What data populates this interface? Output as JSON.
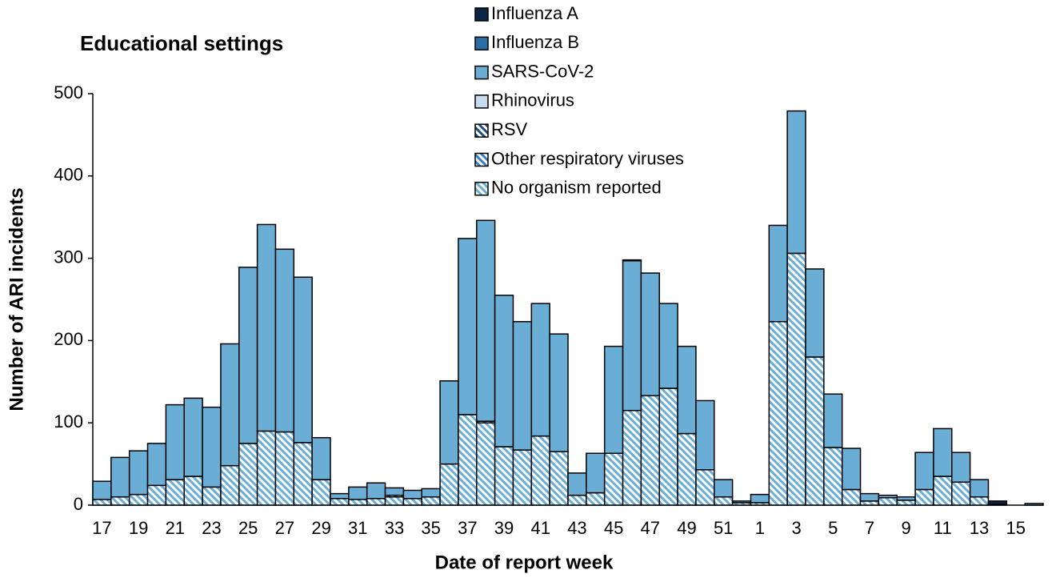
{
  "chart_data": {
    "type": "stacked_bar",
    "title": "Educational settings",
    "x_label": "Date of report week",
    "y_label": "Number of ARI incidents",
    "categories": [
      "17",
      null,
      "19",
      null,
      "21",
      null,
      "23",
      null,
      "25",
      null,
      "27",
      null,
      "29",
      null,
      "31",
      null,
      "33",
      null,
      "35",
      null,
      "37",
      null,
      "39",
      null,
      "41",
      null,
      "43",
      null,
      "45",
      null,
      "47",
      null,
      "49",
      null,
      "51",
      null,
      "1",
      null,
      "3",
      null,
      "5",
      null,
      "7",
      null,
      "9",
      null,
      "11",
      null,
      "13",
      null,
      "15",
      null
    ],
    "series": [
      {
        "name": "Influenza A",
        "color": "#0b2545",
        "pattern": "solid",
        "values": [
          0,
          0,
          0,
          0,
          0,
          0,
          0,
          0,
          0,
          0,
          0,
          0,
          0,
          0,
          0,
          0,
          0,
          0,
          0,
          0,
          0,
          0,
          0,
          0,
          0,
          0,
          0,
          0,
          0,
          1,
          0,
          0,
          0,
          0,
          0,
          0,
          0,
          0,
          0,
          0,
          0,
          0,
          0,
          0,
          0,
          0,
          0,
          0,
          0,
          4,
          0,
          0
        ]
      },
      {
        "name": "Influenza B",
        "color": "#2b6ea6",
        "pattern": "solid",
        "values": [
          0,
          0,
          0,
          0,
          0,
          0,
          0,
          0,
          0,
          0,
          0,
          0,
          0,
          0,
          0,
          0,
          0,
          0,
          0,
          0,
          0,
          0,
          0,
          0,
          0,
          0,
          0,
          0,
          0,
          0,
          0,
          0,
          0,
          0,
          0,
          0,
          0,
          0,
          0,
          0,
          0,
          0,
          0,
          0,
          0,
          0,
          0,
          0,
          0,
          0,
          0,
          0
        ]
      },
      {
        "name": "SARS-CoV-2",
        "color": "#6aaed6",
        "pattern": "solid",
        "values": [
          22,
          48,
          53,
          51,
          91,
          95,
          97,
          148,
          214,
          251,
          222,
          201,
          51,
          6,
          15,
          19,
          9,
          10,
          10,
          101,
          214,
          244,
          184,
          156,
          161,
          143,
          27,
          48,
          130,
          182,
          149,
          103,
          106,
          84,
          21,
          2,
          10,
          117,
          173,
          107,
          65,
          50,
          9,
          3,
          4,
          45,
          58,
          36,
          21,
          1,
          0,
          2
        ]
      },
      {
        "name": "Rhinovirus",
        "color": "#c6dbef",
        "pattern": "solid",
        "values": [
          0,
          0,
          0,
          0,
          0,
          0,
          0,
          0,
          0,
          0,
          0,
          0,
          0,
          0,
          0,
          0,
          0,
          0,
          0,
          0,
          0,
          0,
          0,
          0,
          0,
          0,
          0,
          0,
          0,
          0,
          0,
          0,
          0,
          0,
          0,
          0,
          0,
          0,
          0,
          0,
          0,
          0,
          0,
          0,
          0,
          0,
          0,
          0,
          0,
          0,
          0,
          0
        ]
      },
      {
        "name": "RSV",
        "color": "#1f4e79",
        "pattern": "hatch",
        "values": [
          0,
          0,
          0,
          0,
          0,
          0,
          0,
          0,
          0,
          0,
          0,
          0,
          0,
          0,
          0,
          0,
          0,
          0,
          0,
          0,
          0,
          0,
          0,
          0,
          0,
          0,
          0,
          0,
          0,
          0,
          0,
          0,
          0,
          0,
          0,
          0,
          0,
          0,
          0,
          0,
          0,
          0,
          0,
          0,
          0,
          0,
          0,
          0,
          0,
          0,
          0,
          0
        ]
      },
      {
        "name": "Other respiratory viruses",
        "color": "#3a7fc0",
        "pattern": "hatch",
        "values": [
          0,
          0,
          0,
          0,
          0,
          0,
          0,
          0,
          0,
          0,
          0,
          0,
          0,
          0,
          0,
          0,
          2,
          0,
          0,
          0,
          0,
          2,
          0,
          0,
          0,
          0,
          0,
          0,
          0,
          0,
          0,
          0,
          0,
          0,
          0,
          0,
          0,
          0,
          0,
          0,
          0,
          0,
          0,
          0,
          0,
          0,
          0,
          0,
          0,
          0,
          0,
          0
        ]
      },
      {
        "name": "No organism reported",
        "color": "#6aaed6",
        "pattern": "hatch",
        "values": [
          7,
          10,
          13,
          24,
          31,
          35,
          22,
          48,
          75,
          90,
          89,
          76,
          31,
          8,
          7,
          8,
          10,
          8,
          10,
          50,
          110,
          100,
          71,
          67,
          84,
          65,
          12,
          15,
          63,
          115,
          133,
          142,
          87,
          43,
          10,
          3,
          3,
          223,
          306,
          180,
          70,
          19,
          5,
          9,
          6,
          19,
          35,
          28,
          10,
          0,
          0,
          0
        ]
      }
    ],
    "ylim": [
      0,
      500
    ],
    "yticks": [
      0,
      100,
      200,
      300,
      400,
      500
    ],
    "grid": false
  }
}
